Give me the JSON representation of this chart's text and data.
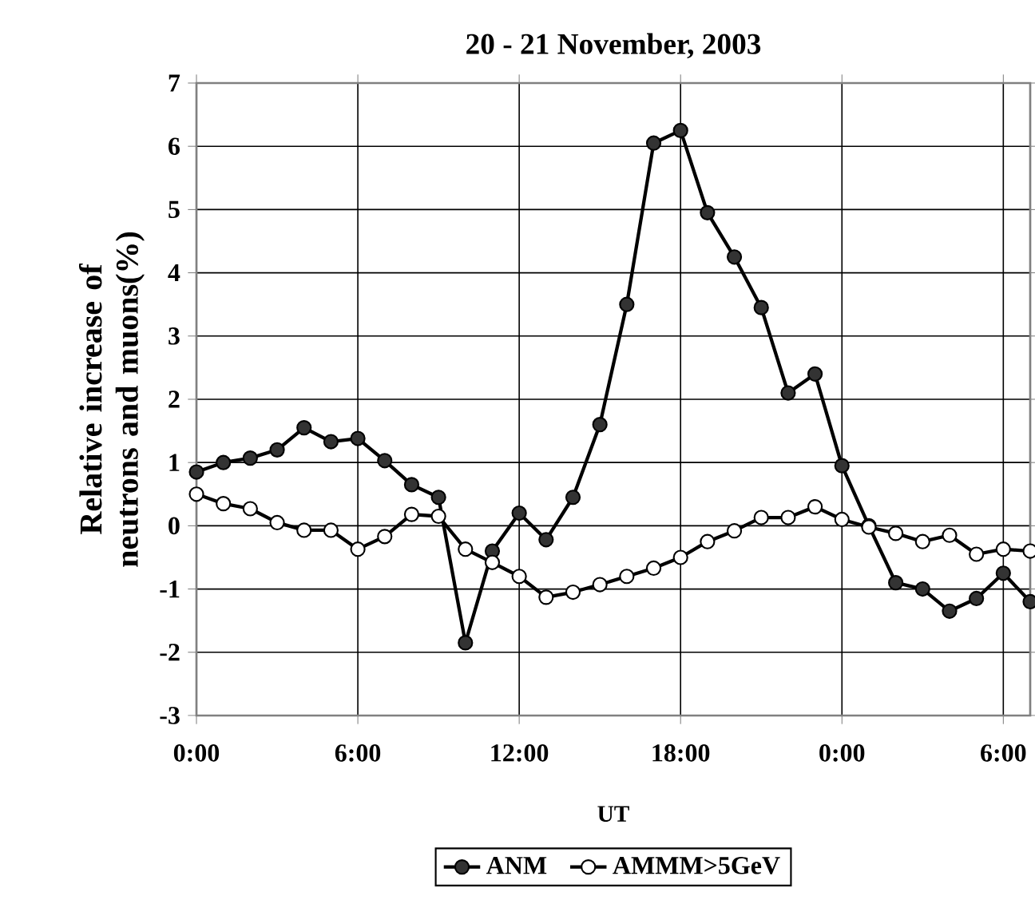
{
  "chart_data": {
    "type": "line",
    "title": "20 - 21 November, 2003",
    "xlabel": "UT",
    "ylabel": "Relative increase of neutrons and muons(%)",
    "x": [
      "2003-11-20T00:00",
      "2003-11-20T01:00",
      "2003-11-20T02:00",
      "2003-11-20T03:00",
      "2003-11-20T04:00",
      "2003-11-20T05:00",
      "2003-11-20T06:00",
      "2003-11-20T07:00",
      "2003-11-20T08:00",
      "2003-11-20T09:00",
      "2003-11-20T10:00",
      "2003-11-20T11:00",
      "2003-11-20T12:00",
      "2003-11-20T13:00",
      "2003-11-20T14:00",
      "2003-11-20T15:00",
      "2003-11-20T16:00",
      "2003-11-20T17:00",
      "2003-11-20T18:00",
      "2003-11-20T19:00",
      "2003-11-20T20:00",
      "2003-11-20T21:00",
      "2003-11-20T22:00",
      "2003-11-20T23:00",
      "2003-11-21T00:00",
      "2003-11-21T01:00",
      "2003-11-21T02:00",
      "2003-11-21T03:00",
      "2003-11-21T04:00",
      "2003-11-21T05:00",
      "2003-11-21T06:00",
      "2003-11-21T07:00"
    ],
    "series": [
      {
        "name": "ANM",
        "color": "#333333",
        "values": [
          0.85,
          1.0,
          1.07,
          1.2,
          1.55,
          1.33,
          1.38,
          1.03,
          0.65,
          0.45,
          -1.85,
          -0.4,
          0.2,
          -0.22,
          0.45,
          1.6,
          3.5,
          6.05,
          6.25,
          4.95,
          4.25,
          3.45,
          2.1,
          2.4,
          0.95,
          0.0,
          -0.9,
          -1.0,
          -1.35,
          -1.15,
          -0.75,
          -1.2
        ]
      },
      {
        "name": "AMMM>5GeV",
        "color": "#ffffff",
        "values": [
          0.5,
          0.35,
          0.27,
          0.05,
          -0.07,
          -0.07,
          -0.37,
          -0.17,
          0.18,
          0.15,
          -0.37,
          -0.58,
          -0.8,
          -1.13,
          -1.05,
          -0.93,
          -0.8,
          -0.67,
          -0.5,
          -0.25,
          -0.08,
          0.13,
          0.13,
          0.3,
          0.1,
          -0.02,
          -0.12,
          -0.25,
          -0.15,
          -0.45,
          -0.37,
          -0.4
        ]
      }
    ],
    "xlim": [
      "2003-11-20T00:00",
      "2003-11-21T07:00"
    ],
    "xticks": [
      {
        "value": "2003-11-20T00:00",
        "label": "0:00"
      },
      {
        "value": "2003-11-20T06:00",
        "label": "6:00"
      },
      {
        "value": "2003-11-20T12:00",
        "label": "12:00"
      },
      {
        "value": "2003-11-20T18:00",
        "label": "18:00"
      },
      {
        "value": "2003-11-21T00:00",
        "label": "0:00"
      },
      {
        "value": "2003-11-21T06:00",
        "label": "6:00"
      }
    ],
    "ylim": [
      -3,
      7
    ],
    "yticks": [
      -3,
      -2,
      -1,
      0,
      1,
      2,
      3,
      4,
      5,
      6,
      7
    ],
    "grid": true,
    "legend": "bottom",
    "marker": "circle",
    "line_style": "solid"
  }
}
